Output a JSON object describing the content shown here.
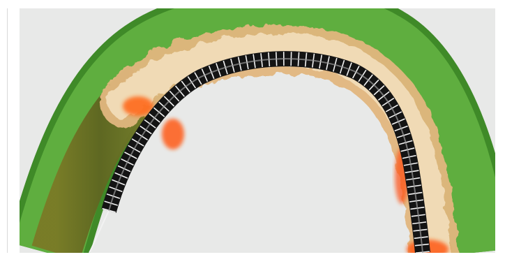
{
  "illustration": {
    "subject": "vessel-with-stent-and-guidewire",
    "colors": {
      "background": "#e8e9e8",
      "vessel_wall": "#58a23a",
      "vessel_wall_dark": "#3f7f25",
      "vessel_lumen_olive": "#6a6f22",
      "plaque": "#e8c08a",
      "plaque_light": "#f4e0bf",
      "plaque_orange": "#ff6a1a",
      "stent_dark": "#1a1a1a",
      "stent_wire": "#ffffff",
      "guidewire": "#f2f2f2"
    }
  }
}
